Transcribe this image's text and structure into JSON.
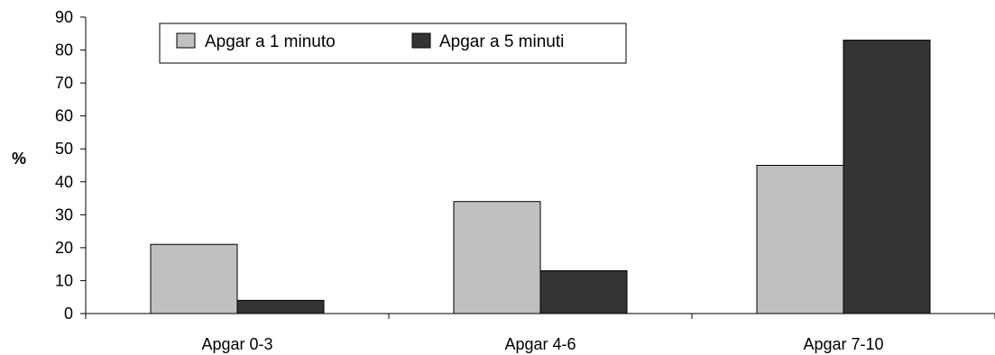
{
  "chart_data": {
    "type": "bar",
    "categories": [
      "Apgar 0-3",
      "Apgar 4-6",
      "Apgar 7-10"
    ],
    "series": [
      {
        "name": "Apgar a 1 minuto",
        "values": [
          21,
          34,
          45
        ],
        "color": "#c0c0c0"
      },
      {
        "name": "Apgar a 5 minuti",
        "values": [
          4,
          13,
          83
        ],
        "color": "#333333"
      }
    ],
    "title": "",
    "xlabel": "",
    "ylabel": "%",
    "ylim": [
      0,
      90
    ],
    "yticks": [
      "0",
      "10",
      "20",
      "30",
      "40",
      "50",
      "60",
      "70",
      "80",
      "90"
    ],
    "grid": false,
    "legend_position": "top-left"
  }
}
